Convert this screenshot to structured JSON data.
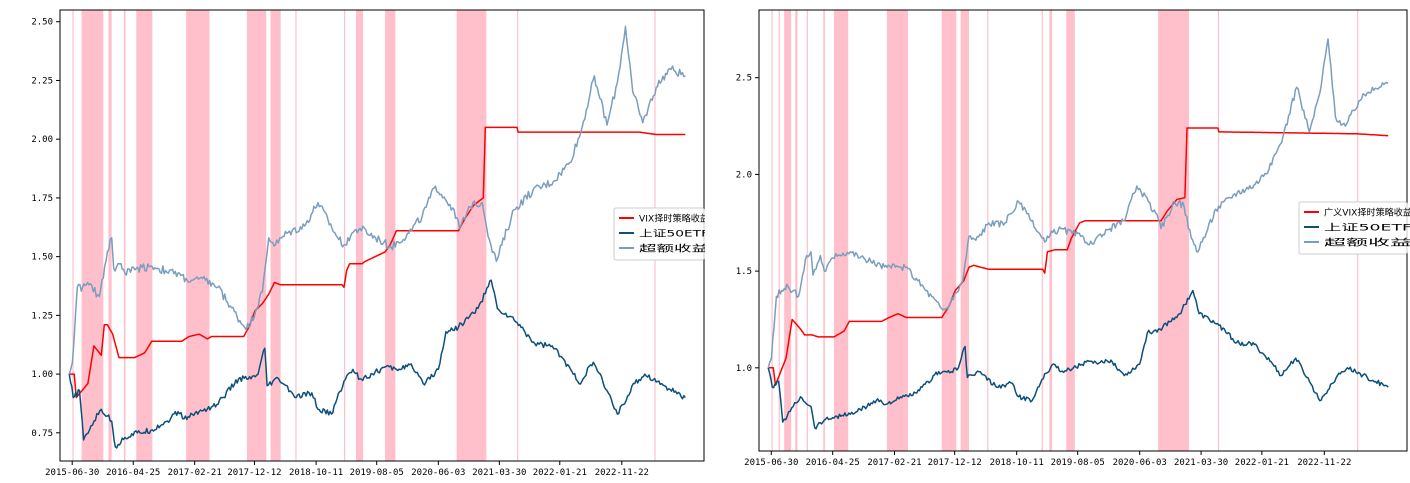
{
  "chart_data": [
    {
      "type": "line",
      "title": "",
      "xlabel": "",
      "ylabel": "",
      "x_range": [
        "2015-05-01",
        "2023-12-31"
      ],
      "ylim": [
        0.63,
        2.55
      ],
      "yticks": [
        0.75,
        1.0,
        1.25,
        1.5,
        1.75,
        2.0,
        2.25,
        2.5
      ],
      "ytick_labels": [
        "0.75",
        "1.00",
        "1.25",
        "1.50",
        "1.75",
        "2.00",
        "2.25",
        "2.50"
      ],
      "xtick_labels": [
        "2015-06-30",
        "2016-04-25",
        "2017-02-21",
        "2017-12-12",
        "2018-10-11",
        "2019-08-05",
        "2020-06-03",
        "2021-03-30",
        "2022-01-21",
        "2022-11-22"
      ],
      "legend_position": "right",
      "shaded_periods": [
        [
          "2015-07-01",
          "2015-07-06"
        ],
        [
          "2015-08-15",
          "2015-11-30"
        ],
        [
          "2015-12-25",
          "2016-01-10"
        ],
        [
          "2016-03-10",
          "2016-03-18"
        ],
        [
          "2016-05-10",
          "2016-07-28"
        ],
        [
          "2017-01-10",
          "2017-05-05"
        ],
        [
          "2017-11-05",
          "2018-02-08"
        ],
        [
          "2018-03-01",
          "2018-04-20"
        ],
        [
          "2018-07-01",
          "2018-07-05"
        ],
        [
          "2019-02-25",
          "2019-03-02"
        ],
        [
          "2019-04-25",
          "2019-05-30"
        ],
        [
          "2019-09-15",
          "2019-11-05"
        ],
        [
          "2020-09-01",
          "2021-01-25"
        ],
        [
          "2021-06-25",
          "2021-06-29"
        ],
        [
          "2023-05-01",
          "2023-05-05"
        ]
      ],
      "shade_color": "#ffc0cb",
      "series": [
        {
          "name": "VIX择时策略收益",
          "color": "#ff0000",
          "x": [
            "2015-06-15",
            "2015-07-10",
            "2015-07-20",
            "2015-09-15",
            "2015-10-15",
            "2015-11-20",
            "2015-12-05",
            "2015-12-20",
            "2016-01-15",
            "2016-02-15",
            "2016-03-15",
            "2016-05-01",
            "2016-06-20",
            "2016-07-25",
            "2016-12-20",
            "2017-01-25",
            "2017-03-15",
            "2017-04-25",
            "2017-05-15",
            "2017-10-20",
            "2017-11-15",
            "2017-12-15",
            "2018-01-20",
            "2018-02-20",
            "2018-03-20",
            "2018-04-20",
            "2018-05-20",
            "2019-02-15",
            "2019-02-25",
            "2019-03-10",
            "2019-03-25",
            "2019-05-25",
            "2019-06-10",
            "2019-09-15",
            "2019-10-10",
            "2019-11-10",
            "2020-09-10",
            "2020-10-10",
            "2020-11-25",
            "2021-01-10",
            "2021-01-20",
            "2021-06-25",
            "2021-06-30",
            "2023-02-15",
            "2023-05-10",
            "2023-09-30"
          ],
          "y": [
            1.0,
            1.0,
            0.9,
            0.96,
            1.12,
            1.08,
            1.21,
            1.21,
            1.17,
            1.07,
            1.07,
            1.07,
            1.09,
            1.14,
            1.14,
            1.16,
            1.17,
            1.15,
            1.16,
            1.16,
            1.2,
            1.27,
            1.3,
            1.34,
            1.39,
            1.38,
            1.38,
            1.38,
            1.37,
            1.44,
            1.47,
            1.47,
            1.48,
            1.52,
            1.55,
            1.61,
            1.61,
            1.66,
            1.72,
            1.75,
            2.05,
            2.05,
            2.03,
            2.03,
            2.02,
            2.02
          ]
        },
        {
          "name": "上证50ETF",
          "color": "#0b4f7c",
          "x": [
            "2015-06-15",
            "2015-07-05",
            "2015-08-05",
            "2015-08-25",
            "2015-10-15",
            "2015-11-20",
            "2016-01-10",
            "2016-01-28",
            "2016-03-15",
            "2016-05-15",
            "2016-07-20",
            "2016-10-10",
            "2016-12-01",
            "2016-12-31",
            "2017-03-15",
            "2017-06-10",
            "2017-09-25",
            "2017-11-25",
            "2017-12-30",
            "2018-02-01",
            "2018-02-12",
            "2018-04-10",
            "2018-07-05",
            "2018-09-20",
            "2018-10-20",
            "2018-12-25",
            "2019-02-25",
            "2019-04-10",
            "2019-05-15",
            "2019-07-15",
            "2019-09-15",
            "2019-11-10",
            "2020-01-15",
            "2020-03-20",
            "2020-06-03",
            "2020-07-10",
            "2020-09-10",
            "2020-12-15",
            "2021-02-18",
            "2021-03-20",
            "2021-06-25",
            "2021-09-20",
            "2021-12-15",
            "2022-03-15",
            "2022-04-25",
            "2022-07-05",
            "2022-09-10",
            "2022-10-31",
            "2023-01-25",
            "2023-03-15",
            "2023-06-20",
            "2023-09-30"
          ],
          "y": [
            1.0,
            0.9,
            0.93,
            0.72,
            0.8,
            0.85,
            0.8,
            0.69,
            0.73,
            0.75,
            0.76,
            0.8,
            0.84,
            0.81,
            0.84,
            0.87,
            0.98,
            0.98,
            1.0,
            1.11,
            0.95,
            0.98,
            0.9,
            0.92,
            0.85,
            0.83,
            0.97,
            1.02,
            0.98,
            1.0,
            1.03,
            1.02,
            1.04,
            0.96,
            1.02,
            1.18,
            1.2,
            1.28,
            1.4,
            1.28,
            1.22,
            1.13,
            1.12,
            1.02,
            0.96,
            1.05,
            0.93,
            0.83,
            0.96,
            1.0,
            0.95,
            0.9
          ]
        },
        {
          "name": "超额收益",
          "color": "#7a9ebf",
          "x": [
            "2015-06-15",
            "2015-07-01",
            "2015-07-25",
            "2015-08-20",
            "2015-09-20",
            "2015-11-10",
            "2015-12-20",
            "2016-01-10",
            "2016-01-20",
            "2016-02-25",
            "2016-03-15",
            "2016-05-10",
            "2016-07-20",
            "2016-10-01",
            "2016-12-15",
            "2017-01-15",
            "2017-04-15",
            "2017-06-15",
            "2017-10-15",
            "2017-11-15",
            "2018-01-20",
            "2018-02-20",
            "2018-03-25",
            "2018-05-20",
            "2018-08-15",
            "2018-10-20",
            "2019-01-25",
            "2019-02-25",
            "2019-04-05",
            "2019-05-15",
            "2019-08-20",
            "2019-10-15",
            "2020-01-10",
            "2020-03-15",
            "2020-05-20",
            "2020-08-20",
            "2020-09-15",
            "2020-11-20",
            "2021-01-05",
            "2021-02-10",
            "2021-03-15",
            "2021-06-10",
            "2021-09-10",
            "2021-12-20",
            "2022-03-10",
            "2022-05-05",
            "2022-07-10",
            "2022-09-10",
            "2022-10-31",
            "2022-12-10",
            "2023-01-15",
            "2023-03-05",
            "2023-05-10",
            "2023-07-15",
            "2023-09-30"
          ],
          "y": [
            1.0,
            1.05,
            1.37,
            1.37,
            1.38,
            1.33,
            1.52,
            1.58,
            1.45,
            1.47,
            1.43,
            1.45,
            1.46,
            1.44,
            1.42,
            1.4,
            1.4,
            1.37,
            1.21,
            1.2,
            1.35,
            1.58,
            1.55,
            1.6,
            1.63,
            1.73,
            1.58,
            1.55,
            1.6,
            1.62,
            1.57,
            1.54,
            1.6,
            1.67,
            1.8,
            1.7,
            1.62,
            1.73,
            1.73,
            1.57,
            1.48,
            1.7,
            1.78,
            1.82,
            1.9,
            2.03,
            2.27,
            2.06,
            2.24,
            2.48,
            2.2,
            2.07,
            2.22,
            2.3,
            2.27
          ]
        }
      ]
    },
    {
      "type": "line",
      "title": "",
      "xlabel": "",
      "ylabel": "",
      "x_range": [
        "2015-05-01",
        "2023-12-31"
      ],
      "ylim": [
        0.57,
        2.85
      ],
      "yticks": [
        1.0,
        1.5,
        2.0,
        2.5
      ],
      "ytick_labels": [
        "1.0",
        "1.5",
        "2.0",
        "2.5"
      ],
      "xtick_labels": [
        "2015-06-30",
        "2016-04-25",
        "2017-02-21",
        "2017-12-12",
        "2018-10-11",
        "2019-08-05",
        "2020-06-03",
        "2021-03-30",
        "2022-01-21",
        "2022-11-22"
      ],
      "legend_position": "right",
      "shaded_periods": [
        [
          "2015-07-01",
          "2015-07-06"
        ],
        [
          "2015-08-05",
          "2015-08-10"
        ],
        [
          "2015-09-01",
          "2015-10-05"
        ],
        [
          "2015-10-25",
          "2015-11-05"
        ],
        [
          "2015-12-20",
          "2015-12-25"
        ],
        [
          "2016-03-10",
          "2016-03-18"
        ],
        [
          "2016-05-01",
          "2016-07-10"
        ],
        [
          "2017-01-15",
          "2017-04-28"
        ],
        [
          "2017-10-10",
          "2017-12-20"
        ],
        [
          "2018-01-10",
          "2018-02-20"
        ],
        [
          "2018-05-20",
          "2018-05-25"
        ],
        [
          "2019-02-10",
          "2019-02-16"
        ],
        [
          "2019-03-20",
          "2019-04-02"
        ],
        [
          "2019-06-10",
          "2019-07-22"
        ],
        [
          "2020-09-01",
          "2021-01-30"
        ],
        [
          "2021-06-20",
          "2021-06-25"
        ],
        [
          "2023-05-01",
          "2023-05-05"
        ]
      ],
      "shade_color": "#ffc0cb",
      "series": [
        {
          "name": "广义VIX择时策略收益",
          "color": "#ff0000",
          "x": [
            "2015-06-15",
            "2015-07-10",
            "2015-07-20",
            "2015-09-10",
            "2015-10-10",
            "2015-11-20",
            "2015-12-10",
            "2016-01-15",
            "2016-02-15",
            "2016-05-01",
            "2016-06-20",
            "2016-07-15",
            "2016-12-20",
            "2017-01-25",
            "2017-03-10",
            "2017-04-20",
            "2017-05-15",
            "2017-10-10",
            "2017-11-15",
            "2017-12-15",
            "2018-01-25",
            "2018-02-20",
            "2018-03-15",
            "2018-05-25",
            "2019-02-15",
            "2019-02-25",
            "2019-03-10",
            "2019-04-15",
            "2019-06-15",
            "2019-07-05",
            "2019-08-15",
            "2019-09-10",
            "2019-10-15",
            "2020-09-15",
            "2020-10-15",
            "2020-12-01",
            "2021-01-10",
            "2021-01-20",
            "2021-06-20",
            "2021-06-25",
            "2023-05-01",
            "2023-09-30"
          ],
          "y": [
            1.0,
            1.0,
            0.91,
            1.05,
            1.25,
            1.2,
            1.17,
            1.17,
            1.16,
            1.16,
            1.19,
            1.24,
            1.24,
            1.26,
            1.28,
            1.26,
            1.26,
            1.26,
            1.32,
            1.4,
            1.45,
            1.52,
            1.53,
            1.51,
            1.51,
            1.49,
            1.6,
            1.61,
            1.61,
            1.67,
            1.75,
            1.76,
            1.76,
            1.76,
            1.81,
            1.87,
            1.88,
            2.24,
            2.24,
            2.22,
            2.21,
            2.2
          ]
        },
        {
          "name": "上证50ETF",
          "color": "#0b4f7c",
          "x": [
            "2015-06-15",
            "2015-07-05",
            "2015-08-05",
            "2015-08-25",
            "2015-10-15",
            "2015-11-20",
            "2016-01-10",
            "2016-01-28",
            "2016-03-15",
            "2016-05-15",
            "2016-07-20",
            "2016-10-10",
            "2016-12-01",
            "2016-12-31",
            "2017-03-15",
            "2017-06-10",
            "2017-09-25",
            "2017-11-25",
            "2017-12-30",
            "2018-02-01",
            "2018-02-12",
            "2018-04-10",
            "2018-07-05",
            "2018-09-20",
            "2018-10-20",
            "2018-12-25",
            "2019-02-25",
            "2019-04-10",
            "2019-05-15",
            "2019-07-15",
            "2019-09-15",
            "2019-11-10",
            "2020-01-15",
            "2020-03-20",
            "2020-06-03",
            "2020-07-10",
            "2020-09-10",
            "2020-12-15",
            "2021-02-18",
            "2021-03-20",
            "2021-06-25",
            "2021-09-20",
            "2021-12-15",
            "2022-03-15",
            "2022-04-25",
            "2022-07-05",
            "2022-09-10",
            "2022-10-31",
            "2023-01-25",
            "2023-03-15",
            "2023-06-20",
            "2023-09-30"
          ],
          "y": [
            1.0,
            0.9,
            0.93,
            0.72,
            0.8,
            0.85,
            0.8,
            0.69,
            0.73,
            0.75,
            0.76,
            0.8,
            0.84,
            0.81,
            0.84,
            0.87,
            0.98,
            0.98,
            1.0,
            1.11,
            0.95,
            0.98,
            0.9,
            0.92,
            0.85,
            0.83,
            0.97,
            1.02,
            0.98,
            1.0,
            1.03,
            1.02,
            1.04,
            0.96,
            1.02,
            1.18,
            1.2,
            1.28,
            1.4,
            1.28,
            1.22,
            1.13,
            1.12,
            1.02,
            0.96,
            1.05,
            0.93,
            0.83,
            0.96,
            1.0,
            0.95,
            0.9
          ]
        },
        {
          "name": "超额收益",
          "color": "#7a9ebf",
          "x": [
            "2015-06-15",
            "2015-07-01",
            "2015-07-25",
            "2015-08-20",
            "2015-09-20",
            "2015-11-10",
            "2015-12-20",
            "2016-01-10",
            "2016-01-20",
            "2016-02-25",
            "2016-03-15",
            "2016-05-10",
            "2016-07-20",
            "2016-10-01",
            "2016-12-15",
            "2017-01-15",
            "2017-04-15",
            "2017-06-15",
            "2017-10-15",
            "2017-11-15",
            "2018-01-20",
            "2018-02-20",
            "2018-03-25",
            "2018-05-20",
            "2018-08-15",
            "2018-10-20",
            "2019-01-25",
            "2019-02-25",
            "2019-04-05",
            "2019-05-15",
            "2019-08-20",
            "2019-10-15",
            "2020-01-10",
            "2020-03-15",
            "2020-05-20",
            "2020-08-20",
            "2020-09-15",
            "2020-11-20",
            "2021-01-05",
            "2021-02-10",
            "2021-03-15",
            "2021-06-10",
            "2021-09-10",
            "2021-12-20",
            "2022-03-10",
            "2022-05-05",
            "2022-07-10",
            "2022-09-10",
            "2022-10-31",
            "2022-12-10",
            "2023-01-15",
            "2023-03-05",
            "2023-05-10",
            "2023-07-15",
            "2023-09-30"
          ],
          "y": [
            1.0,
            1.05,
            1.37,
            1.4,
            1.42,
            1.37,
            1.58,
            1.6,
            1.48,
            1.58,
            1.5,
            1.59,
            1.6,
            1.56,
            1.53,
            1.52,
            1.52,
            1.45,
            1.3,
            1.32,
            1.45,
            1.68,
            1.66,
            1.74,
            1.75,
            1.86,
            1.7,
            1.65,
            1.7,
            1.72,
            1.68,
            1.64,
            1.72,
            1.76,
            1.94,
            1.8,
            1.72,
            1.86,
            1.84,
            1.67,
            1.6,
            1.82,
            1.9,
            1.95,
            2.05,
            2.2,
            2.45,
            2.22,
            2.42,
            2.7,
            2.3,
            2.25,
            2.38,
            2.45,
            2.47
          ]
        }
      ]
    }
  ]
}
